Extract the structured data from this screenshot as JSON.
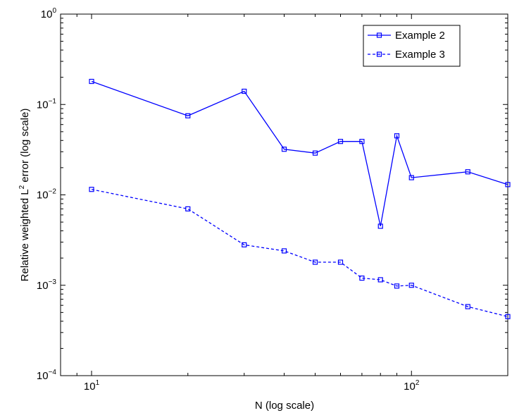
{
  "chart_data": {
    "type": "line",
    "title": "",
    "xlabel": "N (log scale)",
    "ylabel": {
      "prefix": "Relative weighted L",
      "sup": "2",
      "suffix": " error (log scale)"
    },
    "xscale": "log",
    "yscale": "log",
    "xlim": [
      8,
      200
    ],
    "ylim": [
      0.0001,
      1
    ],
    "grid": false,
    "legend_position": "top-right",
    "x_ticks": [
      {
        "value": 10,
        "base": "10",
        "exp": "1"
      },
      {
        "value": 100,
        "base": "10",
        "exp": "2"
      }
    ],
    "y_ticks": [
      {
        "value": 1,
        "base": "10",
        "exp": "0"
      },
      {
        "value": 0.1,
        "base": "10",
        "exp": "−1"
      },
      {
        "value": 0.01,
        "base": "10",
        "exp": "−2"
      },
      {
        "value": 0.001,
        "base": "10",
        "exp": "−3"
      },
      {
        "value": 0.0001,
        "base": "10",
        "exp": "−4"
      }
    ],
    "series": [
      {
        "name": "Example 2",
        "color": "#0000ff",
        "line_style": "solid",
        "marker": "square",
        "x": [
          10,
          20,
          30,
          40,
          50,
          60,
          70,
          80,
          90,
          100,
          150,
          200
        ],
        "y": [
          0.18,
          0.075,
          0.14,
          0.032,
          0.029,
          0.039,
          0.039,
          0.0045,
          0.045,
          0.0155,
          0.018,
          0.013
        ]
      },
      {
        "name": "Example 3",
        "color": "#0000ff",
        "line_style": "dashed",
        "marker": "square",
        "x": [
          10,
          20,
          30,
          40,
          50,
          60,
          70,
          80,
          90,
          100,
          150,
          200
        ],
        "y": [
          0.0115,
          0.007,
          0.0028,
          0.0024,
          0.0018,
          0.0018,
          0.0012,
          0.00115,
          0.00098,
          0.001,
          0.00058,
          0.00045
        ]
      }
    ]
  }
}
